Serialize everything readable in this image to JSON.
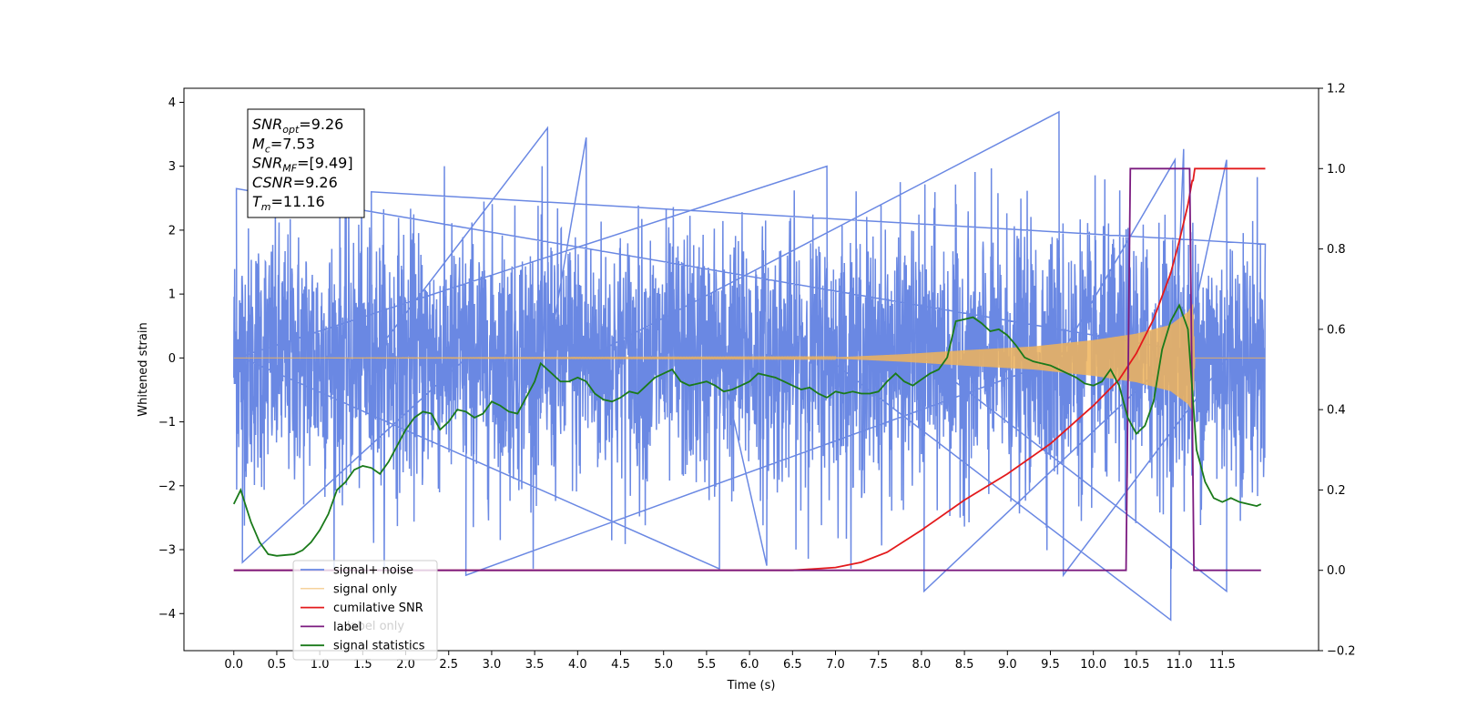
{
  "chart_data": {
    "type": "line",
    "xlabel": "Time (s)",
    "ylabel": "Whitened strain",
    "xlim": [
      -0.58,
      12.62
    ],
    "ylim": [
      -4.58,
      4.22
    ],
    "y2lim": [
      -0.2,
      1.2
    ],
    "x_ticks": [
      "0.0",
      "0.5",
      "1.0",
      "1.5",
      "2.0",
      "2.5",
      "3.0",
      "3.5",
      "4.0",
      "4.5",
      "5.0",
      "5.5",
      "6.0",
      "6.5",
      "7.0",
      "7.5",
      "8.0",
      "8.5",
      "9.0",
      "9.5",
      "10.0",
      "10.5",
      "11.0",
      "11.5"
    ],
    "y_ticks": [
      "4",
      "3",
      "2",
      "1",
      "0",
      "−1",
      "−2",
      "−3",
      "−4"
    ],
    "y2_ticks": [
      "1.2",
      "1.0",
      "0.8",
      "0.6",
      "0.4",
      "0.2",
      "0.0",
      "−0.2"
    ],
    "info_box": [
      {
        "base": "SNR",
        "sub": "opt",
        "value": "=9.26"
      },
      {
        "base": "M",
        "sub": "c",
        "value": "=7.53"
      },
      {
        "base": "SNR",
        "sub": "MF",
        "value": "=[9.49]"
      },
      {
        "base": "CSNR",
        "sub": "",
        "value": "=9.26"
      },
      {
        "base": "T",
        "sub": "m",
        "value": "=11.16"
      }
    ],
    "legend": {
      "placement": "lower-left",
      "entries": [
        "signal+ noise",
        "signal only",
        "cumilative SNR",
        "label",
        "signal statistics"
      ]
    },
    "legend_overlap_text": [
      "label only",
      "signal statistics"
    ],
    "series": [
      {
        "name": "signal+ noise",
        "axis": "left",
        "color": "#6a88e3",
        "description": "whitened noisy strain, roughly gaussian with std 1 and occasional spikes",
        "x_range": [
          0.0,
          12.0
        ],
        "std": 1.0,
        "peaks": [
          [
            1.6,
            2.6
          ],
          [
            3.65,
            3.6
          ],
          [
            4.1,
            3.45
          ],
          [
            9.6,
            3.85
          ],
          [
            10.95,
            3.1
          ],
          [
            11.05,
            3.27
          ],
          [
            11.55,
            3.1
          ],
          [
            0.03,
            2.65
          ],
          [
            6.9,
            3.0
          ],
          [
            10.9,
            -4.1
          ],
          [
            8.03,
            -3.65
          ],
          [
            11.55,
            -3.65
          ],
          [
            9.65,
            -3.4
          ],
          [
            2.7,
            -3.4
          ],
          [
            0.1,
            -3.2
          ],
          [
            5.65,
            -3.3
          ],
          [
            6.2,
            -3.25
          ]
        ]
      },
      {
        "name": "signal only",
        "axis": "left",
        "color": "#f0b45a",
        "description": "chirp waveform growing in amplitude until merger time",
        "x_range": [
          0.0,
          12.0
        ],
        "merger_time": 11.16,
        "amplitude": [
          [
            0.0,
            0.0
          ],
          [
            7.0,
            0.01
          ],
          [
            7.8,
            0.06
          ],
          [
            8.5,
            0.12
          ],
          [
            9.3,
            0.18
          ],
          [
            10.0,
            0.28
          ],
          [
            10.5,
            0.38
          ],
          [
            10.9,
            0.52
          ],
          [
            11.1,
            0.72
          ],
          [
            11.16,
            0.85
          ],
          [
            11.18,
            0.0
          ],
          [
            12.0,
            0.0
          ]
        ]
      },
      {
        "name": "cumilative SNR",
        "axis": "right",
        "color": "#e31a1c",
        "x": [
          0.0,
          6.0,
          6.5,
          7.0,
          7.3,
          7.6,
          8.0,
          8.5,
          9.0,
          9.5,
          10.0,
          10.3,
          10.5,
          10.7,
          10.9,
          11.0,
          11.1,
          11.15,
          11.16,
          11.18,
          12.0
        ],
        "values": [
          0.0,
          0.0,
          0.0,
          0.007,
          0.02,
          0.045,
          0.1,
          0.175,
          0.24,
          0.315,
          0.41,
          0.475,
          0.54,
          0.625,
          0.74,
          0.82,
          0.91,
          0.97,
          0.97,
          1.0,
          1.0
        ]
      },
      {
        "name": "label",
        "axis": "right",
        "color": "#7b1a7f",
        "x": [
          0.0,
          10.38,
          10.43,
          11.12,
          11.17,
          11.95
        ],
        "values": [
          0.0,
          0.0,
          1.0,
          1.0,
          0.0,
          0.0
        ]
      },
      {
        "name": "signal statistics",
        "axis": "right",
        "color": "#1a7a1a",
        "x": [
          0.0,
          0.08,
          0.2,
          0.3,
          0.4,
          0.5,
          0.6,
          0.7,
          0.8,
          0.9,
          1.0,
          1.1,
          1.2,
          1.3,
          1.4,
          1.5,
          1.6,
          1.7,
          1.8,
          1.9,
          2.0,
          2.1,
          2.2,
          2.3,
          2.4,
          2.5,
          2.6,
          2.7,
          2.8,
          2.9,
          3.0,
          3.1,
          3.2,
          3.3,
          3.4,
          3.5,
          3.57,
          3.7,
          3.8,
          3.9,
          4.0,
          4.1,
          4.2,
          4.3,
          4.4,
          4.5,
          4.6,
          4.7,
          4.8,
          4.9,
          5.0,
          5.1,
          5.2,
          5.3,
          5.4,
          5.5,
          5.6,
          5.7,
          5.8,
          5.9,
          6.0,
          6.1,
          6.2,
          6.3,
          6.4,
          6.5,
          6.6,
          6.7,
          6.8,
          6.9,
          7.0,
          7.1,
          7.2,
          7.3,
          7.4,
          7.5,
          7.6,
          7.7,
          7.8,
          7.9,
          8.0,
          8.1,
          8.2,
          8.3,
          8.4,
          8.5,
          8.6,
          8.7,
          8.8,
          8.9,
          9.0,
          9.1,
          9.2,
          9.3,
          9.4,
          9.5,
          9.6,
          9.7,
          9.8,
          9.9,
          10.0,
          10.1,
          10.2,
          10.3,
          10.4,
          10.5,
          10.6,
          10.7,
          10.8,
          10.9,
          11.0,
          11.1,
          11.2,
          11.3,
          11.4,
          11.5,
          11.6,
          11.7,
          11.8,
          11.9,
          11.95
        ],
        "values": [
          0.165,
          0.2,
          0.12,
          0.07,
          0.04,
          0.036,
          0.038,
          0.04,
          0.05,
          0.07,
          0.1,
          0.14,
          0.2,
          0.22,
          0.25,
          0.26,
          0.255,
          0.24,
          0.27,
          0.31,
          0.35,
          0.38,
          0.395,
          0.39,
          0.35,
          0.37,
          0.4,
          0.395,
          0.38,
          0.39,
          0.42,
          0.41,
          0.395,
          0.39,
          0.43,
          0.47,
          0.515,
          0.49,
          0.47,
          0.47,
          0.48,
          0.47,
          0.44,
          0.425,
          0.42,
          0.43,
          0.445,
          0.44,
          0.46,
          0.48,
          0.49,
          0.5,
          0.47,
          0.46,
          0.465,
          0.47,
          0.46,
          0.445,
          0.45,
          0.46,
          0.47,
          0.49,
          0.485,
          0.48,
          0.47,
          0.46,
          0.45,
          0.455,
          0.44,
          0.43,
          0.445,
          0.44,
          0.445,
          0.44,
          0.44,
          0.445,
          0.47,
          0.49,
          0.47,
          0.46,
          0.475,
          0.49,
          0.5,
          0.53,
          0.62,
          0.625,
          0.63,
          0.615,
          0.595,
          0.6,
          0.585,
          0.56,
          0.53,
          0.52,
          0.515,
          0.51,
          0.5,
          0.49,
          0.48,
          0.465,
          0.46,
          0.47,
          0.5,
          0.46,
          0.38,
          0.34,
          0.36,
          0.42,
          0.55,
          0.62,
          0.66,
          0.6,
          0.3,
          0.22,
          0.18,
          0.17,
          0.18,
          0.17,
          0.165,
          0.16,
          0.165
        ]
      }
    ]
  }
}
